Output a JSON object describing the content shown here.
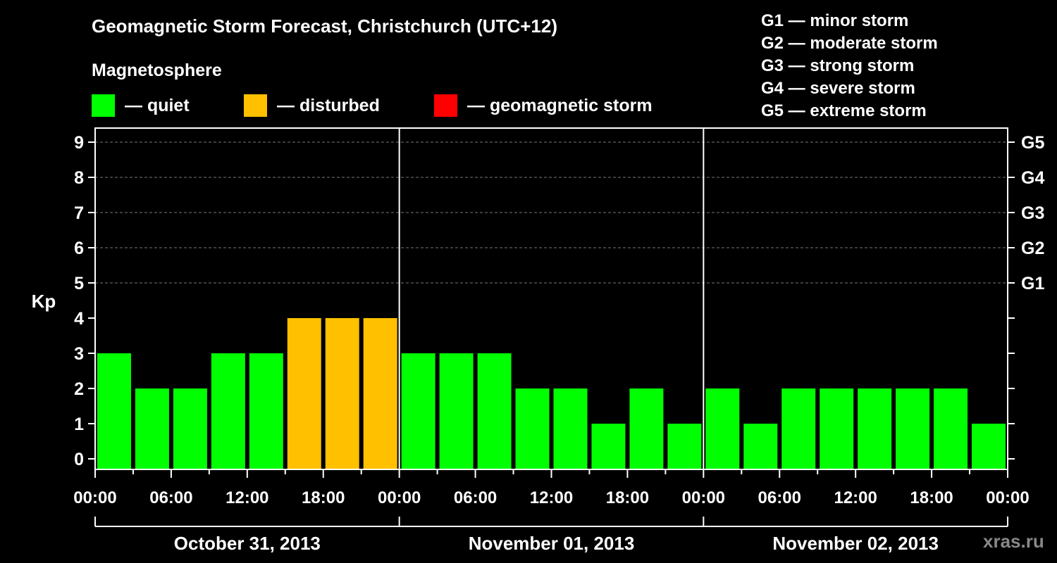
{
  "header": {
    "title": "Geomagnetic Storm Forecast, Christchurch (UTC+12)",
    "subtitle": "Magnetosphere"
  },
  "legend": [
    {
      "label": "— quiet",
      "color": "#00ff00"
    },
    {
      "label": "— disturbed",
      "color": "#ffc000"
    },
    {
      "label": "— geomagnetic storm",
      "color": "#ff0000"
    }
  ],
  "storm_levels": [
    "G1 — minor storm",
    "G2 — moderate storm",
    "G3 — strong storm",
    "G4 — severe storm",
    "G5 — extreme storm"
  ],
  "watermark": "xras.ru",
  "chart_data": {
    "type": "bar",
    "title": "Geomagnetic Storm Forecast, Christchurch (UTC+12)",
    "ylabel": "Kp",
    "xlabel": "",
    "ylim": [
      0,
      9
    ],
    "yticks": [
      0,
      1,
      2,
      3,
      4,
      5,
      6,
      7,
      8,
      9
    ],
    "right_axis_labels": [
      {
        "kp": 5,
        "label": "G1"
      },
      {
        "kp": 6,
        "label": "G2"
      },
      {
        "kp": 7,
        "label": "G3"
      },
      {
        "kp": 8,
        "label": "G4"
      },
      {
        "kp": 9,
        "label": "G5"
      }
    ],
    "x_tick_labels": [
      "00:00",
      "06:00",
      "12:00",
      "18:00",
      "00:00",
      "06:00",
      "12:00",
      "18:00",
      "00:00",
      "06:00",
      "12:00",
      "18:00",
      "00:00"
    ],
    "days": [
      "October 31, 2013",
      "November 01, 2013",
      "November 02, 2013"
    ],
    "interval_hours": 3,
    "values": [
      3,
      2,
      2,
      3,
      3,
      4,
      4,
      4,
      3,
      3,
      3,
      2,
      2,
      1,
      2,
      1,
      2,
      1,
      2,
      2,
      2,
      2,
      2,
      1
    ],
    "categories": [
      "Oct 31 00-03",
      "Oct 31 03-06",
      "Oct 31 06-09",
      "Oct 31 09-12",
      "Oct 31 12-15",
      "Oct 31 15-18",
      "Oct 31 18-21",
      "Oct 31 21-24",
      "Nov 01 00-03",
      "Nov 01 03-06",
      "Nov 01 06-09",
      "Nov 01 09-12",
      "Nov 01 12-15",
      "Nov 01 15-18",
      "Nov 01 18-21",
      "Nov 01 21-24",
      "Nov 02 00-03",
      "Nov 02 03-06",
      "Nov 02 06-09",
      "Nov 02 09-12",
      "Nov 02 12-15",
      "Nov 02 15-18",
      "Nov 02 18-21",
      "Nov 02 21-24"
    ],
    "color_thresholds": {
      "quiet_max": 3,
      "disturbed": 4,
      "storm_min": 5
    },
    "colors": {
      "quiet": "#00ff00",
      "disturbed": "#ffc000",
      "storm": "#ff0000"
    },
    "grid": "dashed horizontal at 5-9",
    "legend_position": "top"
  }
}
